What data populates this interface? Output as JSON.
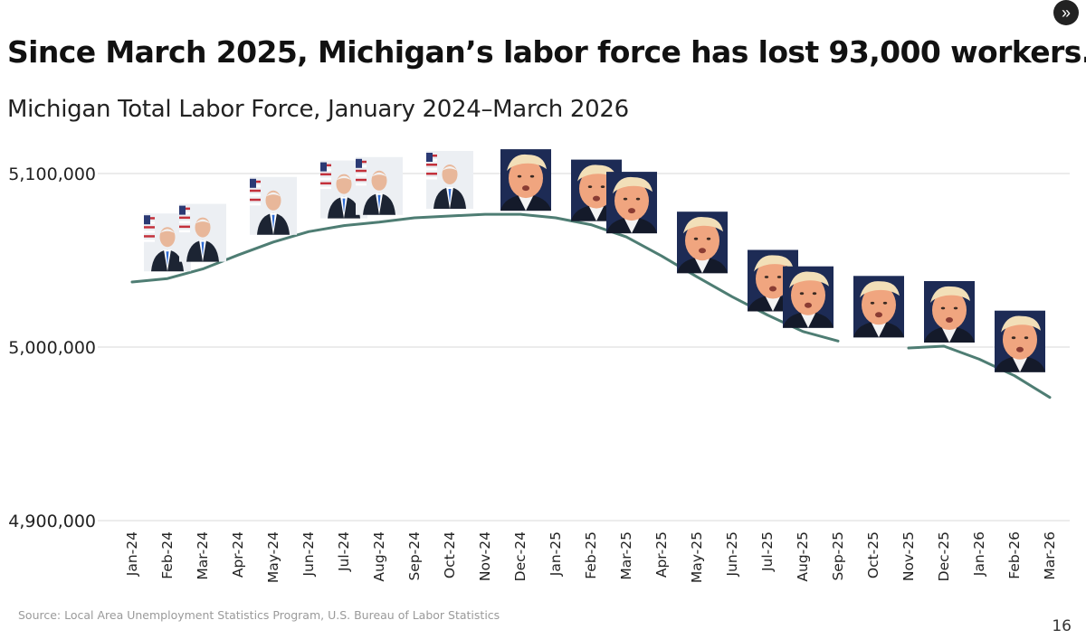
{
  "headline": "Since March 2025, Michigan’s labor force has lost 93,000 workers.",
  "source": "Source: Local Area Unemployment Statistics Program, U.S. Bureau of Labor Statistics",
  "page_number": "16",
  "nav_icon": "double-chevron-right-icon",
  "colors": {
    "line": "#4e7d73",
    "grid": "#d9d9d9",
    "biden_suit": "#1c2433",
    "trump_bg": "#1d2b55",
    "skin": "#e8b79a"
  },
  "chart_data": {
    "type": "line",
    "title": "Michigan Total Labor Force, January 2024–March 2026",
    "xlabel": "",
    "ylabel": "",
    "ylim": [
      4900000,
      5100000
    ],
    "grid": "horizontal",
    "yticks": [
      4900000,
      5000000,
      5100000
    ],
    "ytick_labels": [
      "4,900,000",
      "5,000,000",
      "5,100,000"
    ],
    "categories": [
      "Jan-24",
      "Feb-24",
      "Mar-24",
      "Apr-24",
      "May-24",
      "Jun-24",
      "Jul-24",
      "Aug-24",
      "Sep-24",
      "Oct-24",
      "Nov-24",
      "Dec-24",
      "Jan-25",
      "Feb-25",
      "Mar-25",
      "Apr-25",
      "May-25",
      "Jun-25",
      "Jul-25",
      "Aug-25",
      "Sep-25",
      "Oct-25",
      "Nov-25",
      "Dec-25",
      "Jan-26",
      "Feb-26",
      "Mar-26"
    ],
    "values": [
      5037500,
      5039500,
      5045000,
      5053000,
      5060500,
      5066500,
      5070000,
      5072000,
      5074500,
      5075500,
      5076500,
      5076500,
      5074500,
      5070500,
      5063500,
      5052500,
      5040500,
      5029000,
      5018500,
      5009000,
      5003500,
      null,
      4999500,
      5000500,
      4993000,
      4983500,
      4971000
    ],
    "portraits": [
      {
        "category": "Feb-24",
        "person": "biden"
      },
      {
        "category": "Mar-24",
        "person": "biden"
      },
      {
        "category": "May-24",
        "person": "biden"
      },
      {
        "category": "Jul-24",
        "person": "biden"
      },
      {
        "category": "Aug-24",
        "person": "biden"
      },
      {
        "category": "Oct-24",
        "person": "biden"
      },
      {
        "category": "Dec-24",
        "person": "trump"
      },
      {
        "category": "Feb-25",
        "person": "trump"
      },
      {
        "category": "Mar-25",
        "person": "trump"
      },
      {
        "category": "May-25",
        "person": "trump"
      },
      {
        "category": "Jul-25",
        "person": "trump"
      },
      {
        "category": "Aug-25",
        "person": "trump"
      },
      {
        "category": "Oct-25",
        "person": "trump"
      },
      {
        "category": "Dec-25",
        "person": "trump"
      },
      {
        "category": "Feb-26",
        "person": "trump"
      }
    ]
  }
}
